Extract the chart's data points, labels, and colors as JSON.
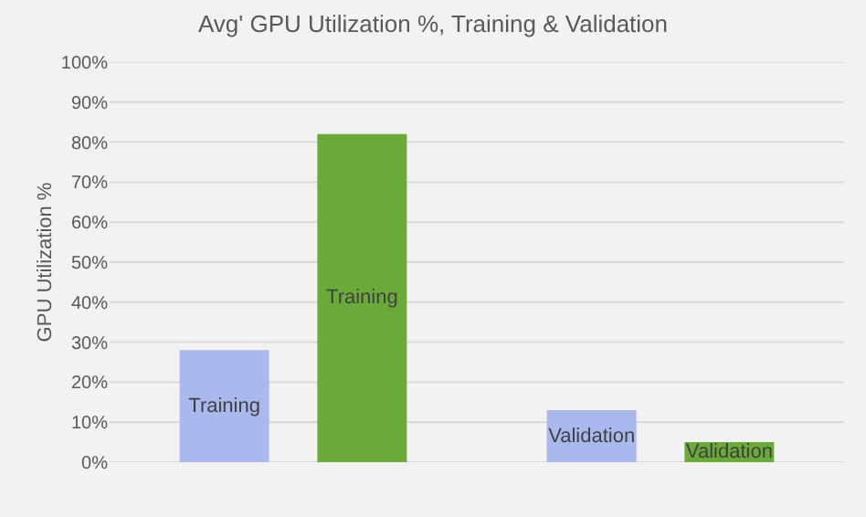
{
  "chart_data": {
    "type": "bar",
    "title": "Avg' GPU Utilization %, Training & Validation",
    "ylabel": "GPU Utilization %",
    "categories": [
      "Training",
      "Validation"
    ],
    "series": [
      {
        "color": "#a9b9ee",
        "values": [
          28,
          13
        ]
      },
      {
        "color": "#6aaa38",
        "values": [
          82,
          5
        ]
      }
    ],
    "ylim": [
      0,
      100
    ],
    "yticks": [
      {
        "value": 0,
        "label": "0%"
      },
      {
        "value": 10,
        "label": "10%"
      },
      {
        "value": 20,
        "label": "20%"
      },
      {
        "value": 30,
        "label": "30%"
      },
      {
        "value": 40,
        "label": "40%"
      },
      {
        "value": 50,
        "label": "50%"
      },
      {
        "value": 60,
        "label": "60%"
      },
      {
        "value": 70,
        "label": "70%"
      },
      {
        "value": 80,
        "label": "80%"
      },
      {
        "value": 90,
        "label": "90%"
      },
      {
        "value": 100,
        "label": "100%"
      }
    ],
    "grid": "y"
  }
}
